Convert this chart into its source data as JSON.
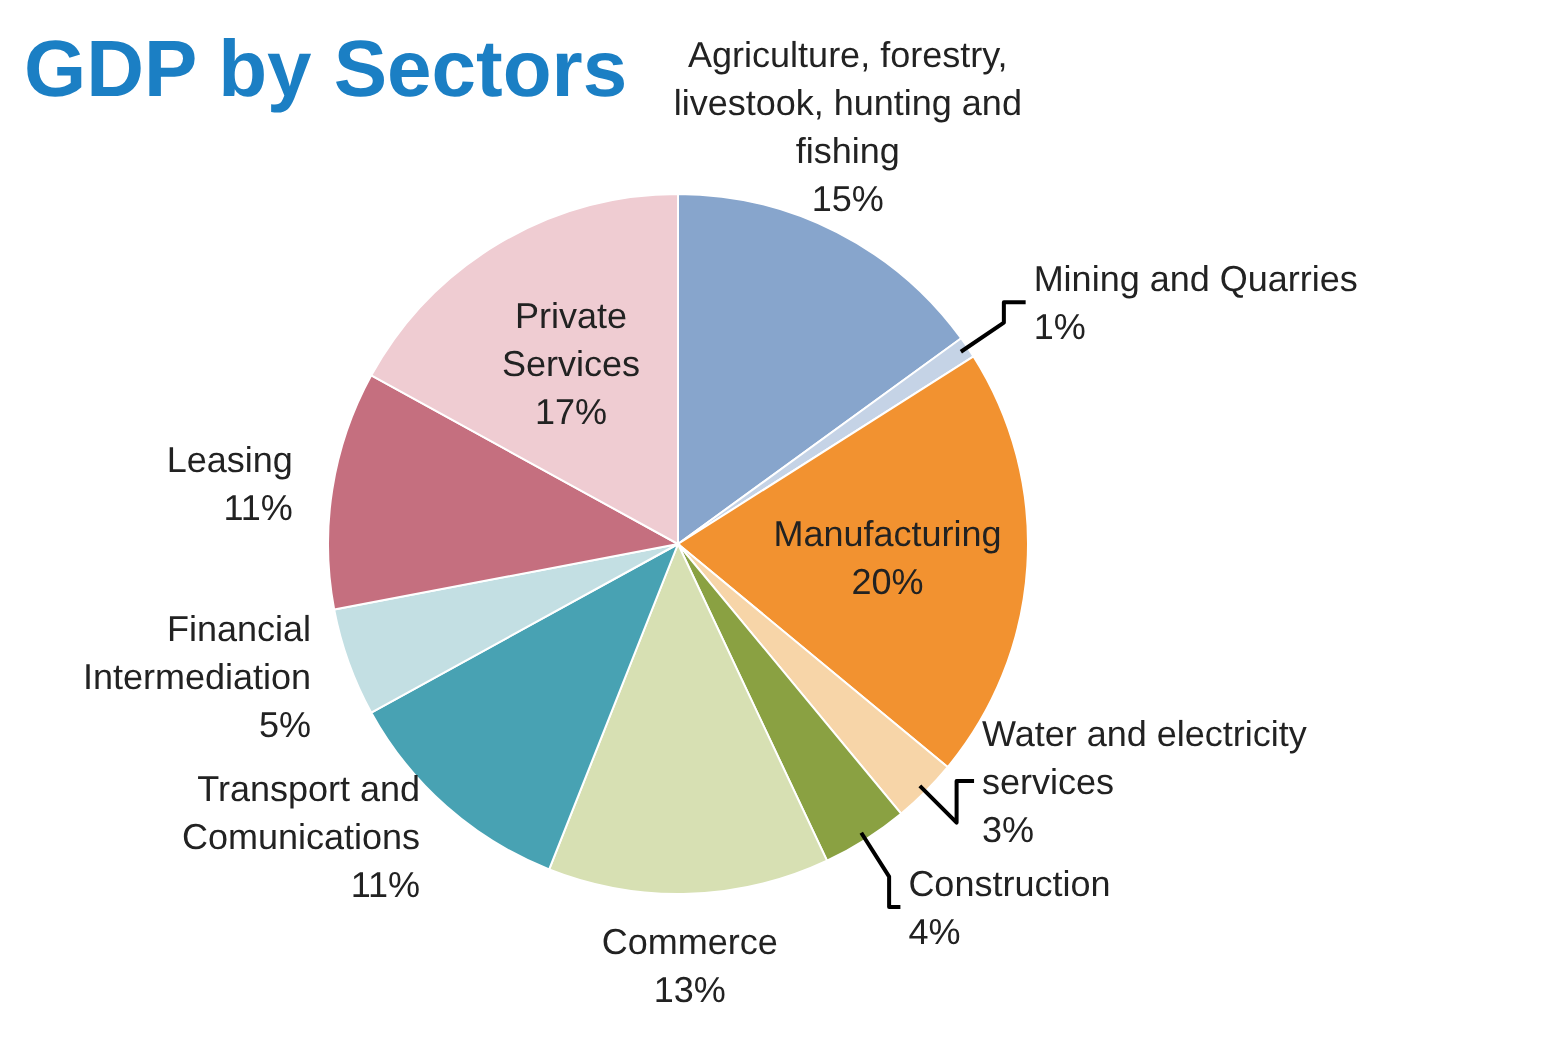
{
  "chart_data": {
    "type": "pie",
    "title": "GDP by Sectors",
    "categories": [
      "Agriculture, forestry, livestook, hunting and fishing",
      "Mining and Quarries",
      "Manufacturing",
      "Water and electricity services",
      "Construction",
      "Commerce",
      "Transport and Comunications",
      "Financial Intermediation",
      "Leasing",
      "Private Services"
    ],
    "values": [
      15,
      1,
      20,
      3,
      4,
      13,
      11,
      5,
      11,
      17
    ],
    "value_labels": [
      "15%",
      "1%",
      "20%",
      "3%",
      "4%",
      "13%",
      "11%",
      "5%",
      "11%",
      "17%"
    ],
    "colors": [
      "#87a5cc",
      "#c5d3e6",
      "#f29230",
      "#f7d5a8",
      "#8aa142",
      "#d7e0b3",
      "#48a2b3",
      "#c3dfe3",
      "#c56f7f",
      "#efccd2"
    ]
  }
}
